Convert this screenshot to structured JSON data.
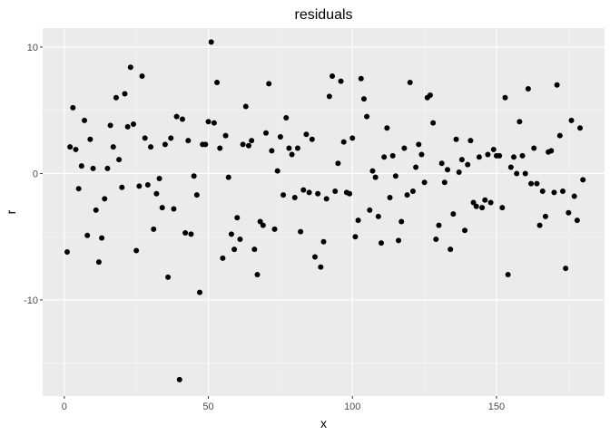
{
  "chart_data": {
    "type": "scatter",
    "title": "residuals",
    "xlabel": "x",
    "ylabel": "r",
    "xlim": [
      -7.5,
      187.5
    ],
    "ylim": [
      -17.6,
      11.5
    ],
    "x_ticks": [
      0,
      50,
      100,
      150
    ],
    "y_ticks": [
      -10,
      0,
      10
    ],
    "grid": true,
    "legend": "none",
    "colors": {
      "panel_background": "#ebebeb",
      "grid_major": "#ffffff",
      "grid_minor": "#f5f5f5",
      "point": "#000000"
    },
    "series": [
      {
        "x": [
          1,
          2,
          3,
          4,
          5,
          6,
          7,
          8,
          9,
          10,
          11,
          12,
          13,
          14,
          15,
          16,
          17,
          18,
          19,
          20,
          21,
          22,
          23,
          24,
          25,
          26,
          27,
          28,
          29,
          30,
          31,
          32,
          33,
          34,
          35,
          36,
          37,
          38,
          39,
          40,
          41,
          42,
          43,
          44,
          45,
          46,
          47,
          48,
          49,
          50,
          51,
          52,
          53,
          54,
          55,
          56,
          57,
          58,
          59,
          60,
          61,
          62,
          63,
          64,
          65,
          66,
          67,
          68,
          69,
          70,
          71,
          72,
          73,
          74,
          75,
          76,
          77,
          78,
          79,
          80,
          81,
          82,
          83,
          84,
          85,
          86,
          87,
          88,
          89,
          90,
          91,
          92,
          93,
          94,
          95,
          96,
          97,
          98,
          99,
          100,
          101,
          102,
          103,
          104,
          105,
          106,
          107,
          108,
          109,
          110,
          111,
          112,
          113,
          114,
          115,
          116,
          117,
          118,
          119,
          120,
          121,
          122,
          123,
          124,
          125,
          126,
          127,
          128,
          129,
          130,
          131,
          132,
          133,
          134,
          135,
          136,
          137,
          138,
          139,
          140,
          141,
          142,
          143,
          144,
          145,
          146,
          147,
          148,
          149,
          150,
          151,
          152,
          153,
          154,
          155,
          156,
          157,
          158,
          159,
          160,
          161,
          162,
          163,
          164,
          165,
          166,
          167,
          168,
          169,
          170,
          171,
          172,
          173,
          174,
          175,
          176,
          177,
          178,
          179,
          180
        ],
        "y": [
          -6.2,
          2.1,
          5.2,
          1.9,
          -1.2,
          0.6,
          4.2,
          -4.9,
          2.7,
          0.4,
          -2.9,
          -7.0,
          -5.1,
          -2.0,
          0.4,
          3.8,
          2.1,
          6.0,
          1.1,
          -1.1,
          6.3,
          3.7,
          8.4,
          3.9,
          -6.1,
          -1.0,
          7.7,
          2.8,
          -0.9,
          2.1,
          -4.4,
          -1.6,
          -0.4,
          -2.7,
          2.3,
          -8.2,
          2.8,
          -2.8,
          4.5,
          -16.3,
          4.3,
          -4.7,
          2.6,
          -4.8,
          -0.2,
          -1.7,
          -9.4,
          2.3,
          2.3,
          4.1,
          10.4,
          4.0,
          7.2,
          2.0,
          -6.7,
          3.0,
          -0.3,
          -4.8,
          -6.0,
          -3.5,
          -5.2,
          2.3,
          5.3,
          2.2,
          2.6,
          -6.0,
          -8.0,
          -3.8,
          -4.1,
          3.2,
          7.1,
          1.8,
          -4.4,
          0.2,
          2.9,
          -1.7,
          4.4,
          2.0,
          1.5,
          -1.9,
          2.0,
          -4.6,
          -1.3,
          3.1,
          -1.5,
          2.7,
          -6.6,
          -1.6,
          -7.4,
          -5.4,
          -2.0,
          6.1,
          7.7,
          -1.4,
          0.8,
          7.3,
          2.5,
          -1.5,
          -1.6,
          2.8,
          -5.0,
          -3.7,
          7.5,
          5.9,
          4.5,
          -2.9,
          0.2,
          -0.3,
          -3.4,
          -5.5,
          1.3,
          3.6,
          -1.9,
          1.4,
          -0.2,
          -5.3,
          -3.8,
          2.0,
          -1.7,
          7.2,
          -1.4,
          0.5,
          2.3,
          1.5,
          -0.7,
          6.0,
          6.2,
          4.0,
          -5.2,
          -4.1,
          0.8,
          -0.7,
          0.3,
          -6.0,
          -3.2,
          2.7,
          0.1,
          1.1,
          -4.5,
          0.7,
          2.6,
          -2.3,
          -2.6,
          1.3,
          -2.7,
          -2.1,
          1.5,
          -2.3,
          1.9,
          1.4,
          1.4,
          -2.7,
          6.0,
          -8.0,
          0.5,
          1.3,
          0.0,
          4.1,
          1.4,
          0.0,
          6.7,
          -0.8,
          2.0,
          -0.8,
          -4.1,
          -1.4,
          -3.4,
          1.7,
          1.8,
          -1.5,
          7.0,
          3.0,
          -1.4,
          -7.5,
          -3.1,
          4.2,
          -1.8,
          -3.7,
          3.6,
          -0.5
        ]
      }
    ]
  }
}
